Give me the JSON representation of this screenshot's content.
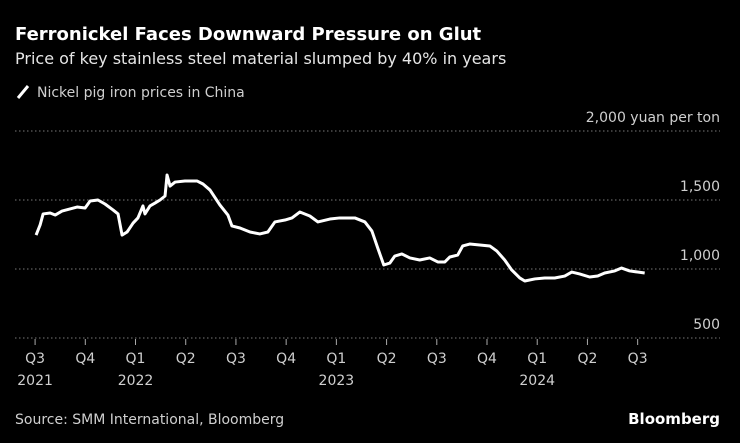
{
  "chart_data": {
    "type": "line",
    "title": "Ferronickel Faces Downward Pressure on Glut",
    "subtitle": "Price of key stainless steel material slumped by 40% in years",
    "source": "Source: SMM International, Bloomberg",
    "brand": "Bloomberg",
    "x": [
      2021.505,
      2021.525,
      2021.54,
      2021.575,
      2021.6,
      2021.634,
      2021.674,
      2021.709,
      2021.749,
      2021.774,
      2021.813,
      2021.848,
      2021.888,
      2021.913,
      2021.933,
      2021.958,
      2021.988,
      2022.012,
      2022.037,
      2022.047,
      2022.072,
      2022.097,
      2022.122,
      2022.147,
      2022.157,
      2022.172,
      2022.197,
      2022.246,
      2022.306,
      2022.336,
      2022.371,
      2022.42,
      2022.46,
      2022.48,
      2022.52,
      2022.57,
      2022.619,
      2022.659,
      2022.694,
      2022.744,
      2022.779,
      2022.818,
      2022.868,
      2022.908,
      2022.968,
      2023.017,
      2023.092,
      2023.142,
      2023.177,
      2023.206,
      2023.236,
      2023.266,
      2023.291,
      2023.326,
      2023.366,
      2023.415,
      2023.465,
      2023.505,
      2023.54,
      2023.565,
      2023.604,
      2023.629,
      2023.664,
      2023.714,
      2023.764,
      2023.799,
      2023.838,
      2023.873,
      2023.913,
      2023.938,
      2023.988,
      2024.037,
      2024.087,
      2024.137,
      2024.172,
      2024.211,
      2024.261,
      2024.301,
      2024.336,
      2024.386,
      2024.42,
      2024.46,
      2024.5,
      2024.535
    ],
    "series": [
      {
        "name": "Nickel pig iron prices in China",
        "color": "#ffffff",
        "values": [
          1246,
          1319,
          1399,
          1406,
          1391,
          1420,
          1435,
          1449,
          1442,
          1493,
          1500,
          1471,
          1428,
          1399,
          1246,
          1268,
          1333,
          1370,
          1457,
          1399,
          1457,
          1478,
          1500,
          1529,
          1681,
          1601,
          1630,
          1638,
          1638,
          1616,
          1572,
          1464,
          1391,
          1312,
          1297,
          1268,
          1254,
          1268,
          1341,
          1355,
          1370,
          1413,
          1384,
          1341,
          1362,
          1370,
          1370,
          1341,
          1275,
          1152,
          1029,
          1043,
          1094,
          1109,
          1080,
          1065,
          1080,
          1051,
          1051,
          1087,
          1101,
          1167,
          1181,
          1174,
          1167,
          1130,
          1065,
          993,
          935,
          913,
          928,
          935,
          935,
          949,
          978,
          964,
          942,
          949,
          971,
          986,
          1007,
          986,
          978,
          971
        ]
      }
    ],
    "xlim": [
      2021.4,
      2024.91
    ],
    "xticks": [
      {
        "value": 2021.5,
        "label": "Q3"
      },
      {
        "value": 2021.75,
        "label": "Q4"
      },
      {
        "value": 2022.0,
        "label": "Q1"
      },
      {
        "value": 2022.25,
        "label": "Q2"
      },
      {
        "value": 2022.5,
        "label": "Q3"
      },
      {
        "value": 2022.75,
        "label": "Q4"
      },
      {
        "value": 2023.0,
        "label": "Q1"
      },
      {
        "value": 2023.25,
        "label": "Q2"
      },
      {
        "value": 2023.5,
        "label": "Q3"
      },
      {
        "value": 2023.75,
        "label": "Q4"
      },
      {
        "value": 2024.0,
        "label": "Q1"
      },
      {
        "value": 2024.25,
        "label": "Q2"
      },
      {
        "value": 2024.5,
        "label": "Q3"
      }
    ],
    "xtick_years": [
      {
        "value": 2021.5,
        "label": "2021"
      },
      {
        "value": 2022.0,
        "label": "2022"
      },
      {
        "value": 2023.0,
        "label": "2023"
      },
      {
        "value": 2024.0,
        "label": "2024"
      }
    ],
    "ylim": [
      500,
      2000
    ],
    "yticks": [
      500,
      {
        "value": 1000,
        "label": "1,000"
      },
      {
        "value": 1500,
        "label": "1,500"
      },
      {
        "value": 2000,
        "label": "2,000 yuan per ton"
      }
    ],
    "grid": true
  }
}
